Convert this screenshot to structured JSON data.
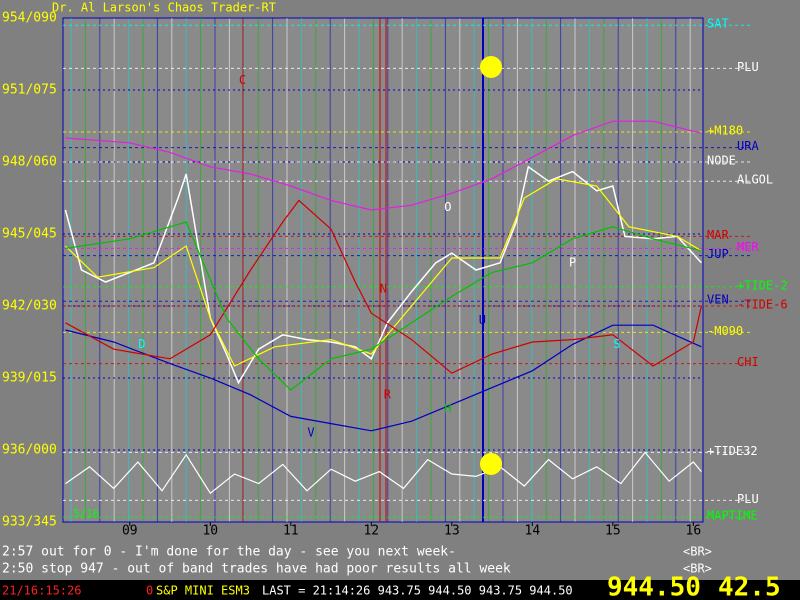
{
  "title": "Dr. Al Larson's Chaos Trader-RT",
  "chart_data": {
    "type": "line",
    "ylim": [
      933,
      954
    ],
    "yticks": [
      {
        "value": 954,
        "label": "954/090"
      },
      {
        "value": 951,
        "label": "951/075"
      },
      {
        "value": 948,
        "label": "948/060"
      },
      {
        "value": 945,
        "label": "945/045"
      },
      {
        "value": 942,
        "label": "942/030"
      },
      {
        "value": 939,
        "label": "939/015"
      },
      {
        "value": 936,
        "label": "936/000"
      },
      {
        "value": 933,
        "label": "933/345"
      }
    ],
    "xlim": [
      8.17,
      16.12
    ],
    "xticks": [
      {
        "value": 9,
        "label": "09"
      },
      10,
      11,
      12,
      13,
      14,
      15,
      16
    ],
    "date_label": "5/16",
    "series": [
      {
        "name": "Price",
        "color": "#ffffff",
        "x": [
          8.2,
          8.4,
          8.7,
          9.0,
          9.3,
          9.6,
          9.7,
          9.85,
          10.0,
          10.2,
          10.35,
          10.6,
          10.9,
          11.2,
          11.5,
          11.8,
          12.0,
          12.2,
          12.5,
          12.8,
          13.0,
          13.3,
          13.6,
          13.8,
          13.95,
          14.2,
          14.5,
          14.8,
          15.0,
          15.15,
          15.5,
          15.8,
          16.1
        ],
        "values": [
          946.0,
          943.5,
          943.0,
          943.4,
          943.8,
          946.5,
          947.5,
          944.5,
          941.5,
          940.0,
          938.8,
          940.2,
          940.8,
          940.6,
          940.5,
          940.3,
          939.8,
          941.3,
          942.6,
          943.8,
          944.2,
          943.5,
          943.8,
          945.5,
          947.8,
          947.2,
          947.6,
          946.8,
          947.0,
          944.9,
          944.8,
          944.9,
          943.8
        ]
      },
      {
        "name": "Yellow",
        "color": "#ffff00",
        "x": [
          8.2,
          8.6,
          9.3,
          9.7,
          10.0,
          10.3,
          10.8,
          11.5,
          12.0,
          12.5,
          13.0,
          13.6,
          13.9,
          14.3,
          14.8,
          15.2,
          15.8,
          16.1
        ],
        "values": [
          944.5,
          943.2,
          943.6,
          944.5,
          941.5,
          939.5,
          940.3,
          940.6,
          940.0,
          942.0,
          944.0,
          944.0,
          946.5,
          947.3,
          947.0,
          945.3,
          944.9,
          944.3
        ]
      },
      {
        "name": "Magenta",
        "color": "#e020e0",
        "x": [
          8.2,
          9.0,
          9.5,
          10.0,
          10.5,
          11.0,
          11.5,
          12.0,
          12.5,
          13.0,
          13.5,
          14.0,
          14.5,
          15.0,
          15.5,
          16.1
        ],
        "values": [
          949.0,
          948.8,
          948.4,
          947.8,
          947.5,
          947.0,
          946.4,
          946.0,
          946.2,
          946.7,
          947.3,
          948.2,
          949.1,
          949.7,
          949.7,
          949.2
        ]
      },
      {
        "name": "Blue",
        "color": "#0000c0",
        "x": [
          8.2,
          8.8,
          9.5,
          10.0,
          10.5,
          11.0,
          11.5,
          12.0,
          12.5,
          13.0,
          13.5,
          14.0,
          14.5,
          15.0,
          15.5,
          16.1
        ],
        "values": [
          941.0,
          940.5,
          939.6,
          939.0,
          938.3,
          937.4,
          937.1,
          936.8,
          937.2,
          937.9,
          938.6,
          939.3,
          940.4,
          941.2,
          941.2,
          940.3
        ]
      },
      {
        "name": "Red",
        "color": "#d00000",
        "x": [
          8.2,
          8.8,
          9.5,
          10.0,
          10.5,
          10.9,
          11.1,
          11.5,
          11.8,
          12.0,
          12.5,
          13.0,
          13.5,
          14.0,
          14.5,
          15.0,
          15.5,
          16.0,
          16.1
        ],
        "values": [
          941.3,
          940.2,
          939.8,
          940.8,
          943.5,
          945.5,
          946.4,
          945.2,
          943.0,
          941.7,
          940.6,
          939.2,
          940.0,
          940.5,
          940.6,
          940.8,
          939.5,
          940.5,
          942.0
        ]
      },
      {
        "name": "Green",
        "color": "#00c000",
        "x": [
          8.2,
          9.0,
          9.7,
          10.2,
          10.6,
          11.0,
          11.5,
          12.0,
          12.5,
          13.0,
          13.5,
          14.0,
          14.5,
          15.0,
          15.5,
          16.1
        ],
        "values": [
          944.4,
          944.8,
          945.5,
          941.5,
          939.8,
          938.5,
          939.8,
          940.2,
          941.3,
          942.4,
          943.4,
          943.8,
          944.8,
          945.3,
          944.8,
          944.3
        ]
      },
      {
        "name": "Oscillator",
        "color": "#ffffff",
        "x": [
          8.2,
          8.5,
          8.8,
          9.1,
          9.4,
          9.7,
          10.0,
          10.3,
          10.6,
          10.9,
          11.2,
          11.5,
          11.8,
          12.1,
          12.4,
          12.7,
          13.0,
          13.3,
          13.6,
          13.9,
          14.2,
          14.5,
          14.8,
          15.1,
          15.4,
          15.7,
          16.0,
          16.1
        ],
        "values": [
          934.6,
          935.3,
          934.4,
          935.5,
          934.3,
          935.8,
          934.2,
          935.0,
          934.6,
          935.4,
          934.3,
          935.2,
          934.7,
          935.1,
          934.4,
          935.6,
          935.0,
          934.9,
          935.3,
          934.5,
          935.6,
          934.8,
          935.3,
          934.6,
          935.9,
          934.7,
          935.5,
          935.1
        ]
      }
    ],
    "levels": [
      {
        "name": "SAT",
        "value": 953.7,
        "color": "#00ffff"
      },
      {
        "name": "PLU",
        "value": 951.9,
        "color": "#ffffff"
      },
      {
        "name": "+M180",
        "value": 949.25,
        "color": "#ffff00"
      },
      {
        "name": "URA",
        "value": 948.6,
        "color": "#0000c0"
      },
      {
        "name": "NODE",
        "value": 948.0,
        "color": "#ffffff"
      },
      {
        "name": "ALGOL",
        "value": 947.2,
        "color": "#ffffff"
      },
      {
        "name": "MAR",
        "value": 944.9,
        "color": "#d00000"
      },
      {
        "name": "MER",
        "value": 944.4,
        "color": "#ff00ff"
      },
      {
        "name": "JUP",
        "value": 944.1,
        "color": "#0000c0"
      },
      {
        "name": "+TIDE-2",
        "value": 942.8,
        "color": "#00ff00"
      },
      {
        "name": "VEN",
        "value": 942.2,
        "color": "#0000c0"
      },
      {
        "name": "-TIDE-6",
        "value": 942.0,
        "color": "#d00000"
      },
      {
        "name": "-M090",
        "value": 940.9,
        "color": "#ffff00"
      },
      {
        "name": "CHI",
        "value": 939.6,
        "color": "#d00000"
      },
      {
        "name": "+TIDE32",
        "value": 935.9,
        "color": "#ffffff"
      },
      {
        "name": "PLU",
        "value": 933.9,
        "color": "#ffffff"
      },
      {
        "name": "MAPTIME",
        "value": 933.2,
        "color": "#00ff00"
      }
    ],
    "annotations": [
      {
        "text": "C",
        "x": 10.4,
        "y": 951.4,
        "color": "#d00000"
      },
      {
        "text": "N",
        "x": 12.15,
        "y": 942.7,
        "color": "#d00000"
      },
      {
        "text": "R",
        "x": 12.2,
        "y": 938.3,
        "color": "#d00000"
      },
      {
        "text": "U",
        "x": 13.38,
        "y": 941.4,
        "color": "#0000c0"
      },
      {
        "text": "V",
        "x": 11.25,
        "y": 936.7,
        "color": "#0000c0"
      },
      {
        "text": "H",
        "x": 12.95,
        "y": 937.7,
        "color": "#00c000"
      },
      {
        "text": "O",
        "x": 12.95,
        "y": 946.1,
        "color": "#ffffff"
      },
      {
        "text": "P",
        "x": 14.5,
        "y": 943.8,
        "color": "#ffffff"
      },
      {
        "text": "S",
        "x": 15.05,
        "y": 940.4,
        "color": "#00ffff"
      },
      {
        "text": "D",
        "x": 9.15,
        "y": 940.4,
        "color": "#00ffff"
      }
    ]
  },
  "messages": [
    "2:57 out for 0 - I'm done for the day - see you next week-",
    "2:50 stop 947 - out of band trades have had poor results all week"
  ],
  "br_labels": [
    "<BR>",
    "<BR>"
  ],
  "status": {
    "time": "21/16:15:26",
    "flag": "0",
    "symbol": "S&P MINI ESM3",
    "last": "LAST = 21:14:26 943.75 944.50 943.75 944.50",
    "price": "944.50",
    "change": "42.5"
  }
}
